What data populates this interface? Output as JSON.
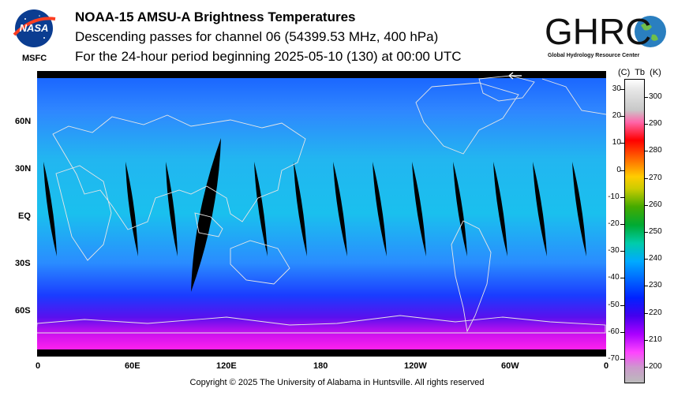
{
  "header": {
    "title": "NOAA-15 AMSU-A Brightness Temperatures",
    "subtitle1": "Descending passes for channel 06 (54399.53 MHz, 400 hPa)",
    "subtitle2": "For the 24-hour period beginning 2025-05-10 (130) at 00:00 UTC"
  },
  "logos": {
    "nasa_text": "NASA",
    "msfc": "MSFC",
    "ghrc_text": "GHRC",
    "ghrc_sub": "Global Hydrology Resource Center"
  },
  "map": {
    "lat_labels": [
      "60N",
      "30N",
      "EQ",
      "30S",
      "60S"
    ],
    "lon_labels": [
      "0",
      "60E",
      "120E",
      "180",
      "120W",
      "60W",
      "0"
    ],
    "colors": {
      "cold": "#ff00ff",
      "mid": "#0066ff",
      "warm": "#00ccee",
      "swath_gap": "#000000",
      "coast": "#ffffff"
    }
  },
  "colorbar": {
    "header_c": "(C)",
    "header_tb": "Tb",
    "header_k": "(K)",
    "celsius_labels": [
      "30",
      "20",
      "10",
      "0",
      "-10",
      "-20",
      "-30",
      "-40",
      "-50",
      "-60",
      "-70"
    ],
    "kelvin_labels": [
      "300",
      "290",
      "280",
      "270",
      "260",
      "250",
      "240",
      "230",
      "220",
      "210",
      "200"
    ]
  },
  "footer": {
    "copyright": "Copyright © 2025 The University of Alabama in Huntsville.  All rights reserved"
  }
}
